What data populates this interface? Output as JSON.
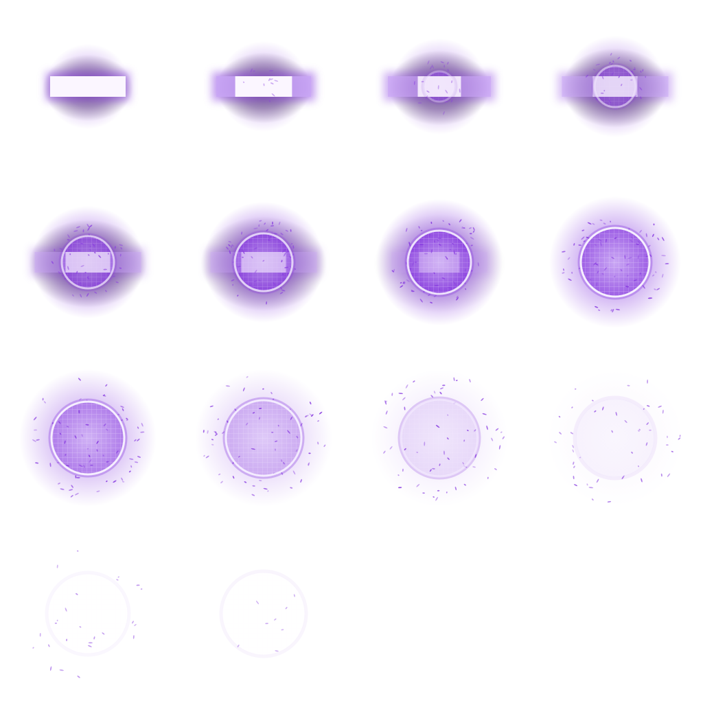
{
  "sprite_sheet": {
    "grid": {
      "columns": 4,
      "rows": 4
    },
    "frame_count": 14,
    "colors": {
      "background": "#ffffff",
      "accent": "#8a3fe0",
      "accent_light": "#c9a6f5",
      "core": "#fbf6ff",
      "ring": "#f6efff",
      "shadow": "#222222"
    },
    "frames": [
      {
        "phase": "beam",
        "beam_level": 1.0,
        "ring_level": 0.0,
        "shadow_level": 0.85,
        "glow_level": 0.55,
        "particle_level": 0.0
      },
      {
        "phase": "beam",
        "beam_level": 0.95,
        "ring_level": 0.0,
        "shadow_level": 0.9,
        "glow_level": 0.55,
        "particle_level": 0.15
      },
      {
        "phase": "beam-opening",
        "beam_level": 0.75,
        "ring_level": 0.35,
        "shadow_level": 0.9,
        "glow_level": 0.6,
        "particle_level": 0.3
      },
      {
        "phase": "ring-forming",
        "beam_level": 0.6,
        "ring_level": 0.55,
        "shadow_level": 0.95,
        "glow_level": 0.65,
        "particle_level": 0.45
      },
      {
        "phase": "ring-forming",
        "beam_level": 0.5,
        "ring_level": 0.7,
        "shadow_level": 0.95,
        "glow_level": 0.85,
        "particle_level": 0.7
      },
      {
        "phase": "ring-expanding",
        "beam_level": 0.4,
        "ring_level": 0.78,
        "shadow_level": 0.75,
        "glow_level": 0.95,
        "particle_level": 0.85
      },
      {
        "phase": "ring-expanding",
        "beam_level": 0.2,
        "ring_level": 0.9,
        "shadow_level": 0.3,
        "glow_level": 1.0,
        "particle_level": 1.0
      },
      {
        "phase": "ring-full",
        "beam_level": 0.05,
        "ring_level": 1.0,
        "shadow_level": 0.0,
        "glow_level": 0.8,
        "particle_level": 1.0
      },
      {
        "phase": "ring-full",
        "beam_level": 0.0,
        "ring_level": 1.0,
        "shadow_level": 0.0,
        "glow_level": 0.6,
        "particle_level": 1.0
      },
      {
        "phase": "fading",
        "beam_level": 0.0,
        "ring_level": 0.95,
        "shadow_level": 0.0,
        "glow_level": 0.35,
        "particle_level": 0.95
      },
      {
        "phase": "fading",
        "beam_level": 0.0,
        "ring_level": 0.7,
        "shadow_level": 0.0,
        "glow_level": 0.15,
        "particle_level": 0.85
      },
      {
        "phase": "fading",
        "beam_level": 0.0,
        "ring_level": 0.2,
        "shadow_level": 0.0,
        "glow_level": 0.05,
        "particle_level": 0.65
      },
      {
        "phase": "dissipating",
        "beam_level": 0.0,
        "ring_level": 0.12,
        "shadow_level": 0.0,
        "glow_level": 0.0,
        "particle_level": 0.35
      },
      {
        "phase": "dissipating",
        "beam_level": 0.0,
        "ring_level": 0.15,
        "shadow_level": 0.0,
        "glow_level": 0.0,
        "particle_level": 0.12
      }
    ]
  }
}
